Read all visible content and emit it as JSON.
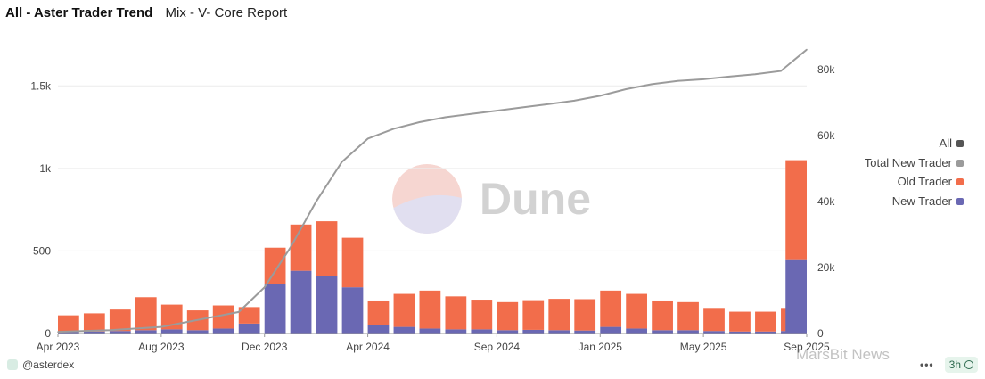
{
  "header": {
    "title": "All - Aster Trader Trend",
    "subtitle": "Mix - V- Core Report"
  },
  "watermark_center": "Dune",
  "footer": {
    "author": "@asterdex",
    "more": "•••",
    "refresh_age": "3h"
  },
  "corner_watermark": "MarsBit News",
  "colors": {
    "all": "#555555",
    "total": "#9b9b9b",
    "old": "#f26d4b",
    "new": "#6a68b3",
    "grid": "#ececec"
  },
  "chart_data": {
    "type": "bar",
    "title": "All - Aster Trader Trend",
    "subtitle": "Mix - V- Core Report",
    "x_ticks": [
      "Apr 2023",
      "Aug 2023",
      "Dec 2023",
      "Apr 2024",
      "Sep 2024",
      "Jan 2025",
      "May 2025",
      "Sep 2025"
    ],
    "y_left": {
      "ticks": [
        "0",
        "500",
        "1k",
        "1.5k"
      ],
      "tick_values": [
        0,
        500,
        1000,
        1500
      ],
      "range": [
        0,
        1750
      ]
    },
    "y_right": {
      "ticks": [
        "0",
        "20k",
        "40k",
        "60k",
        "80k"
      ],
      "tick_values": [
        0,
        20000,
        40000,
        60000,
        80000
      ],
      "range": [
        0,
        87500
      ]
    },
    "grid": true,
    "legend_position": "right",
    "legend": [
      {
        "name": "All",
        "color": "#555555"
      },
      {
        "name": "Total New Trader",
        "color": "#9b9b9b"
      },
      {
        "name": "Old Trader",
        "color": "#f26d4b"
      },
      {
        "name": "New Trader",
        "color": "#6a68b3"
      }
    ],
    "series": [
      {
        "name": "Old Trader",
        "type": "stacked-bar",
        "axis": "left",
        "color": "#f26d4b",
        "x": [
          "2023-04",
          "2023-05",
          "2023-06",
          "2023-07",
          "2023-08",
          "2023-09",
          "2023-10",
          "2023-11",
          "2023-12",
          "2024-01",
          "2024-02",
          "2024-03",
          "2024-04",
          "2024-05",
          "2024-06",
          "2024-07",
          "2024-08",
          "2024-09",
          "2024-10",
          "2024-11",
          "2024-12",
          "2025-01",
          "2025-02",
          "2025-03",
          "2025-04",
          "2025-05",
          "2025-06",
          "2025-07",
          "2025-08",
          "2025-09"
        ],
        "values": [
          100,
          110,
          130,
          200,
          150,
          120,
          140,
          100,
          220,
          280,
          330,
          300,
          150,
          200,
          230,
          200,
          180,
          170,
          180,
          190,
          190,
          220,
          210,
          180,
          170,
          140,
          120,
          120,
          140,
          600
        ]
      },
      {
        "name": "New Trader",
        "type": "stacked-bar",
        "axis": "left",
        "color": "#6a68b3",
        "x": [
          "2023-04",
          "2023-05",
          "2023-06",
          "2023-07",
          "2023-08",
          "2023-09",
          "2023-10",
          "2023-11",
          "2023-12",
          "2024-01",
          "2024-02",
          "2024-03",
          "2024-04",
          "2024-05",
          "2024-06",
          "2024-07",
          "2024-08",
          "2024-09",
          "2024-10",
          "2024-11",
          "2024-12",
          "2025-01",
          "2025-02",
          "2025-03",
          "2025-04",
          "2025-05",
          "2025-06",
          "2025-07",
          "2025-08",
          "2025-09"
        ],
        "values": [
          10,
          12,
          15,
          20,
          25,
          20,
          30,
          60,
          300,
          380,
          350,
          280,
          50,
          40,
          30,
          25,
          25,
          20,
          22,
          20,
          18,
          40,
          30,
          20,
          20,
          15,
          12,
          12,
          15,
          450
        ]
      },
      {
        "name": "Total New Trader",
        "type": "line",
        "axis": "right",
        "color": "#9b9b9b",
        "x": [
          "2023-04",
          "2023-06",
          "2023-08",
          "2023-10",
          "2023-11",
          "2023-12",
          "2024-01",
          "2024-02",
          "2024-03",
          "2024-04",
          "2024-05",
          "2024-06",
          "2024-07",
          "2024-08",
          "2024-09",
          "2024-10",
          "2024-11",
          "2024-12",
          "2025-01",
          "2025-02",
          "2025-03",
          "2025-04",
          "2025-05",
          "2025-06",
          "2025-07",
          "2025-08",
          "2025-09"
        ],
        "values": [
          500,
          1000,
          2000,
          5000,
          6500,
          14000,
          26000,
          40000,
          52000,
          59000,
          62000,
          64000,
          65500,
          66500,
          67500,
          68500,
          69500,
          70500,
          72000,
          74000,
          75500,
          76500,
          77000,
          77800,
          78500,
          79500,
          86000
        ]
      }
    ]
  }
}
